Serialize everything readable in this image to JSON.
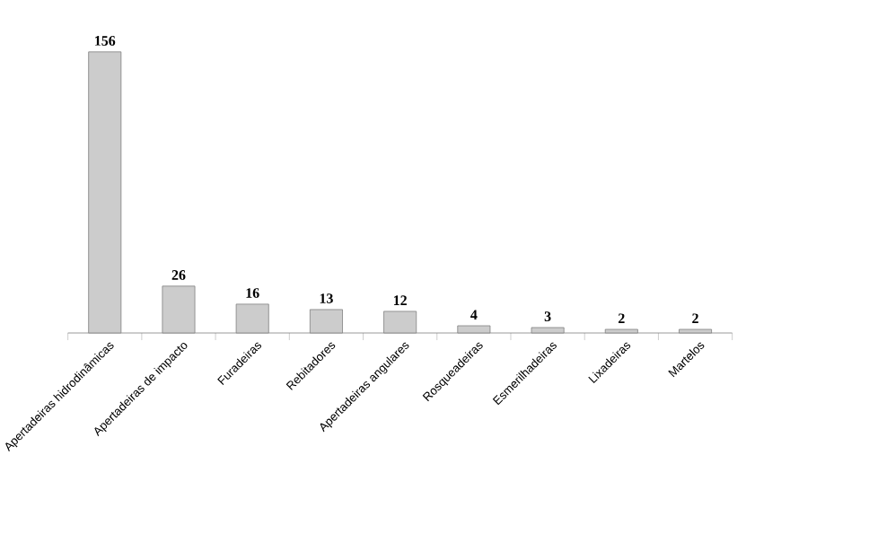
{
  "chart_data": {
    "type": "bar",
    "categories": [
      "Apertadeiras hidrodinâmicas",
      "Apertadeiras de impacto",
      "Furadeiras",
      "Rebitadores",
      "Apertadeiras angulares",
      "Rosqueadeiras",
      "Esmerilhadeiras",
      "Lixadeiras",
      "Martelos"
    ],
    "values": [
      156,
      26,
      16,
      13,
      12,
      4,
      3,
      2,
      2
    ],
    "color": "#cccccc",
    "data_labels": true
  }
}
